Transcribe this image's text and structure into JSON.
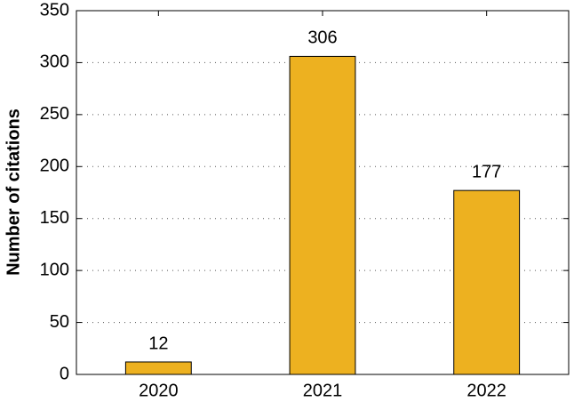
{
  "chart_data": {
    "type": "bar",
    "y_label": "Number of citations",
    "categories": [
      "2020",
      "2021",
      "2022"
    ],
    "values": [
      12,
      306,
      177
    ],
    "color": "#EDB120",
    "ylim": [
      0,
      350
    ],
    "yticks": [
      0,
      50,
      100,
      150,
      200,
      250,
      300,
      350
    ],
    "grid": true
  }
}
